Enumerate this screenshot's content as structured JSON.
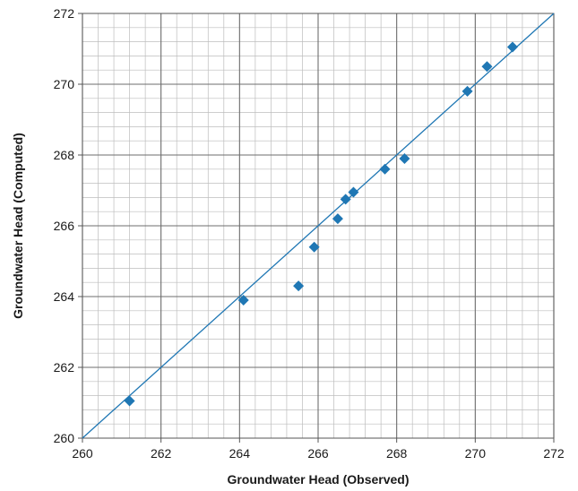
{
  "chart_data": {
    "type": "scatter",
    "title": "",
    "xlabel": "Groundwater Head (Observed)",
    "ylabel": "Groundwater Head (Computed)",
    "xlim": [
      260,
      272
    ],
    "ylim": [
      260,
      272
    ],
    "x_ticks": [
      "260",
      "262",
      "264",
      "266",
      "268",
      "270",
      "272"
    ],
    "y_ticks": [
      "260",
      "262",
      "264",
      "266",
      "268",
      "270",
      "272"
    ],
    "grid": true,
    "minor_grid_step": 0.4,
    "legend": "none",
    "marker": "diamond",
    "marker_color": "#1f77b4",
    "reference_line": {
      "label": "",
      "from": [
        260,
        260
      ],
      "to": [
        272,
        272
      ],
      "color": "#1f77b4"
    },
    "points": [
      {
        "x": 261.2,
        "y": 261.05
      },
      {
        "x": 264.1,
        "y": 263.9
      },
      {
        "x": 265.5,
        "y": 264.3
      },
      {
        "x": 265.9,
        "y": 265.4
      },
      {
        "x": 266.5,
        "y": 266.2
      },
      {
        "x": 266.7,
        "y": 266.75
      },
      {
        "x": 266.9,
        "y": 266.95
      },
      {
        "x": 267.7,
        "y": 267.6
      },
      {
        "x": 268.2,
        "y": 267.9
      },
      {
        "x": 269.8,
        "y": 269.8
      },
      {
        "x": 270.3,
        "y": 270.5
      },
      {
        "x": 270.95,
        "y": 271.05
      }
    ]
  }
}
